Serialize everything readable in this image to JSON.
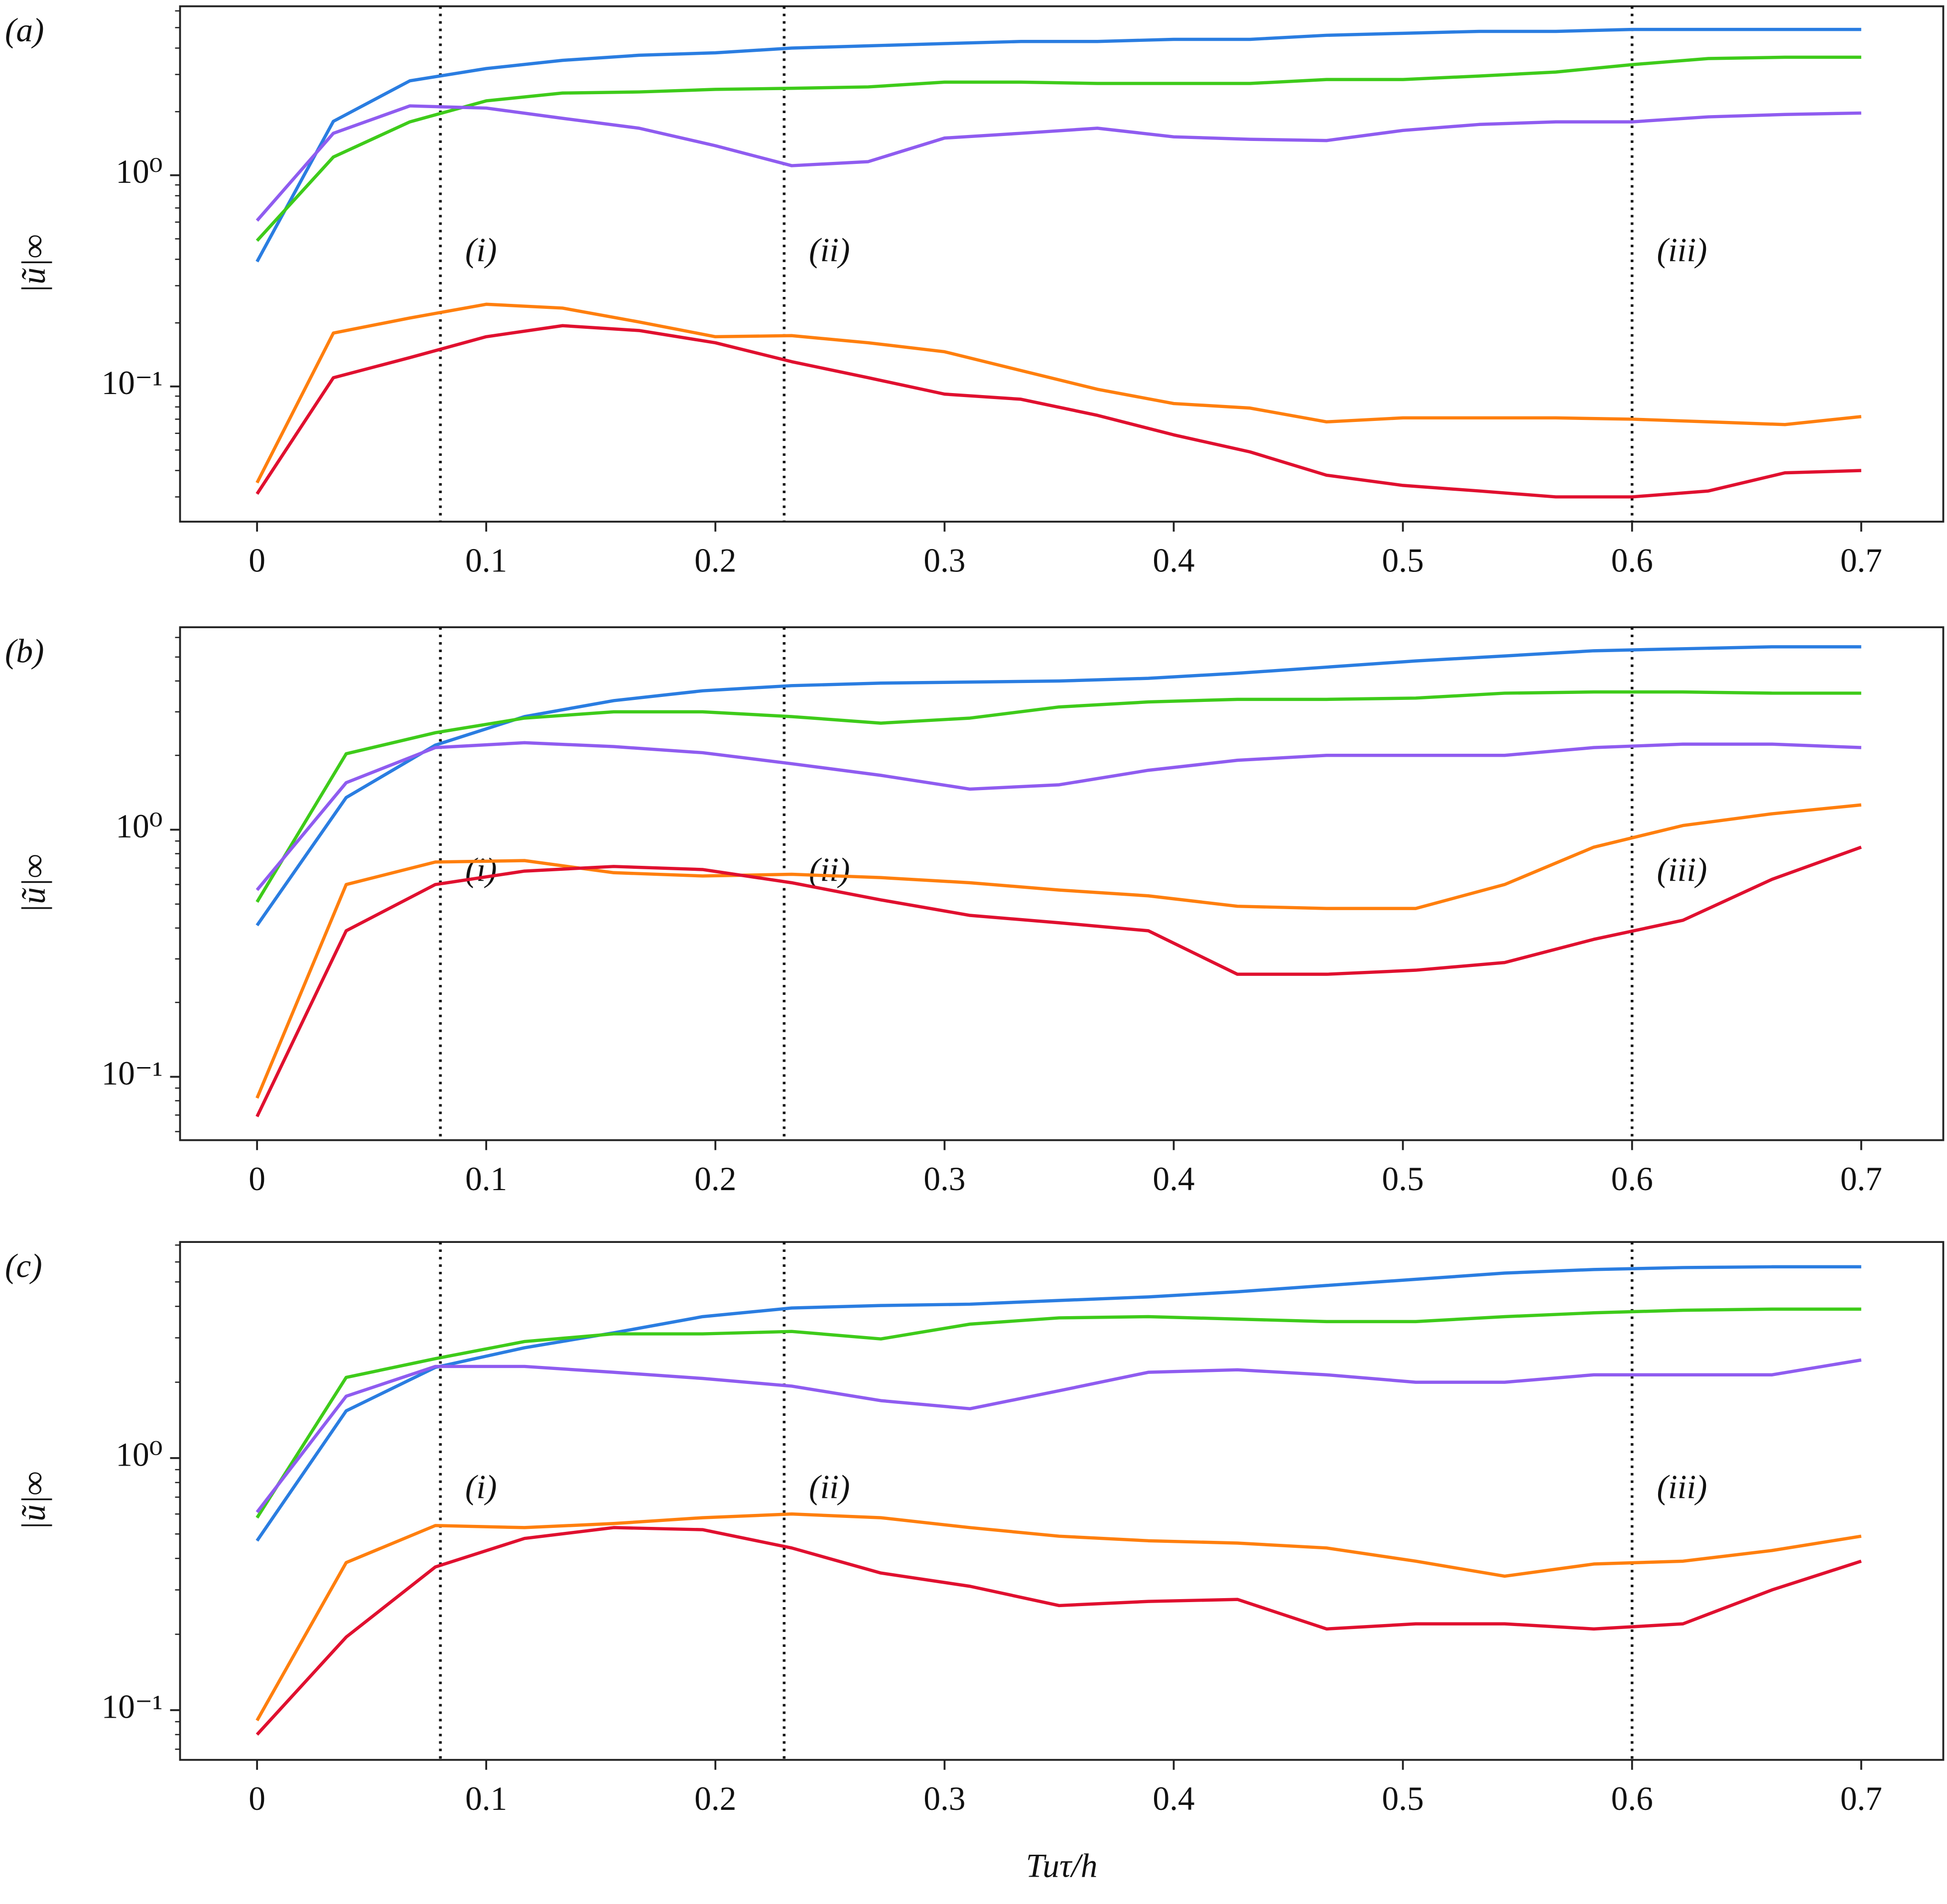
{
  "chart_data": [
    {
      "type": "line",
      "panel_label": "(a)",
      "ylabel": "|ũ|∞",
      "yscale": "log",
      "xlim": [
        -0.0336,
        0.7358
      ],
      "ylim": [
        0.0229,
        6.31
      ],
      "xticks": [
        0,
        0.1,
        0.2,
        0.3,
        0.4,
        0.5,
        0.6,
        0.7
      ],
      "yticks": [
        {
          "value": 0.1,
          "label": "10⁻¹"
        },
        {
          "value": 1,
          "label": "10⁰"
        }
      ],
      "vlines": [
        {
          "x": 0.08,
          "label": "(i)"
        },
        {
          "x": 0.23,
          "label": "(ii)"
        },
        {
          "x": 0.6,
          "label": "(iii)"
        }
      ],
      "x": [
        0,
        0.0333,
        0.0667,
        0.1,
        0.1333,
        0.1667,
        0.2,
        0.2333,
        0.2667,
        0.3,
        0.3333,
        0.3667,
        0.4,
        0.4333,
        0.4667,
        0.5,
        0.5333,
        0.5667,
        0.6,
        0.6333,
        0.6667,
        0.7
      ],
      "series": [
        {
          "color": "#2a7de1",
          "values": [
            0.39,
            1.8,
            2.8,
            3.2,
            3.5,
            3.7,
            3.8,
            4.0,
            4.1,
            4.2,
            4.3,
            4.3,
            4.4,
            4.4,
            4.6,
            4.7,
            4.8,
            4.8,
            4.9,
            4.9,
            4.9,
            4.9
          ]
        },
        {
          "color": "#3ecb1a",
          "values": [
            0.49,
            1.22,
            1.79,
            2.25,
            2.45,
            2.48,
            2.55,
            2.58,
            2.62,
            2.76,
            2.76,
            2.72,
            2.72,
            2.72,
            2.84,
            2.84,
            2.95,
            3.08,
            3.34,
            3.57,
            3.62,
            3.62
          ]
        },
        {
          "color": "#8f5cf0",
          "values": [
            0.61,
            1.58,
            2.13,
            2.08,
            1.86,
            1.67,
            1.38,
            1.11,
            1.16,
            1.5,
            1.58,
            1.67,
            1.52,
            1.48,
            1.46,
            1.63,
            1.74,
            1.79,
            1.79,
            1.89,
            1.94,
            1.97
          ]
        },
        {
          "color": "#ff7f0e",
          "values": [
            0.035,
            0.179,
            0.211,
            0.245,
            0.235,
            0.202,
            0.172,
            0.174,
            0.161,
            0.146,
            0.119,
            0.097,
            0.083,
            0.079,
            0.068,
            0.071,
            0.071,
            0.071,
            0.07,
            0.068,
            0.066,
            0.072
          ]
        },
        {
          "color": "#e0102f",
          "values": [
            0.031,
            0.11,
            0.137,
            0.172,
            0.194,
            0.184,
            0.161,
            0.131,
            0.11,
            0.092,
            0.087,
            0.073,
            0.059,
            0.049,
            0.038,
            0.034,
            0.032,
            0.03,
            0.03,
            0.032,
            0.039,
            0.04
          ]
        }
      ]
    },
    {
      "type": "line",
      "panel_label": "(b)",
      "ylabel": "|ũ|∞",
      "yscale": "log",
      "xlim": [
        -0.0336,
        0.7358
      ],
      "ylim": [
        0.0554,
        6.6
      ],
      "xticks": [
        0,
        0.1,
        0.2,
        0.3,
        0.4,
        0.5,
        0.6,
        0.7
      ],
      "yticks": [
        {
          "value": 0.1,
          "label": "10⁻¹"
        },
        {
          "value": 1,
          "label": "10⁰"
        }
      ],
      "vlines": [
        {
          "x": 0.08,
          "label": "(i)"
        },
        {
          "x": 0.23,
          "label": "(ii)"
        },
        {
          "x": 0.6,
          "label": "(iii)"
        }
      ],
      "x": [
        0,
        0.0389,
        0.0778,
        0.1167,
        0.1556,
        0.1944,
        0.2333,
        0.2722,
        0.3111,
        0.35,
        0.3889,
        0.4278,
        0.4667,
        0.5056,
        0.5444,
        0.5833,
        0.6222,
        0.6611,
        0.7
      ],
      "series": [
        {
          "color": "#2a7de1",
          "values": [
            0.41,
            1.35,
            2.2,
            2.87,
            3.33,
            3.65,
            3.83,
            3.92,
            3.96,
            4.0,
            4.1,
            4.3,
            4.55,
            4.82,
            5.05,
            5.3,
            5.4,
            5.5,
            5.5
          ]
        },
        {
          "color": "#3ecb1a",
          "values": [
            0.51,
            2.03,
            2.47,
            2.83,
            3.0,
            3.0,
            2.87,
            2.7,
            2.83,
            3.14,
            3.29,
            3.37,
            3.37,
            3.41,
            3.57,
            3.61,
            3.61,
            3.57,
            3.57
          ]
        },
        {
          "color": "#8f5cf0",
          "values": [
            0.57,
            1.55,
            2.15,
            2.25,
            2.17,
            2.05,
            1.85,
            1.66,
            1.46,
            1.52,
            1.74,
            1.91,
            2.0,
            2.0,
            2.0,
            2.15,
            2.22,
            2.22,
            2.15
          ]
        },
        {
          "color": "#ff7f0e",
          "values": [
            0.082,
            0.6,
            0.74,
            0.75,
            0.67,
            0.65,
            0.66,
            0.64,
            0.61,
            0.57,
            0.54,
            0.49,
            0.48,
            0.48,
            0.6,
            0.85,
            1.04,
            1.16,
            1.26
          ]
        },
        {
          "color": "#e0102f",
          "values": [
            0.069,
            0.39,
            0.6,
            0.68,
            0.71,
            0.69,
            0.61,
            0.52,
            0.45,
            0.42,
            0.39,
            0.26,
            0.26,
            0.27,
            0.29,
            0.36,
            0.43,
            0.63,
            0.85
          ]
        }
      ]
    },
    {
      "type": "line",
      "panel_label": "(c)",
      "ylabel": "|ũ|∞",
      "xlabel": "Tuτ/h",
      "yscale": "log",
      "xlim": [
        -0.0336,
        0.7358
      ],
      "ylim": [
        0.0635,
        7.2
      ],
      "xticks": [
        0,
        0.1,
        0.2,
        0.3,
        0.4,
        0.5,
        0.6,
        0.7
      ],
      "yticks": [
        {
          "value": 0.1,
          "label": "10⁻¹"
        },
        {
          "value": 1,
          "label": "10⁰"
        }
      ],
      "vlines": [
        {
          "x": 0.08,
          "label": "(i)"
        },
        {
          "x": 0.23,
          "label": "(ii)"
        },
        {
          "x": 0.6,
          "label": "(iii)"
        }
      ],
      "x": [
        0,
        0.0389,
        0.0778,
        0.1167,
        0.1556,
        0.1944,
        0.2333,
        0.2722,
        0.3111,
        0.35,
        0.3889,
        0.4278,
        0.4667,
        0.5056,
        0.5444,
        0.5833,
        0.6222,
        0.6611,
        0.7
      ],
      "series": [
        {
          "color": "#2a7de1",
          "values": [
            0.47,
            1.54,
            2.29,
            2.74,
            3.14,
            3.64,
            3.94,
            4.03,
            4.08,
            4.22,
            4.36,
            4.57,
            4.84,
            5.12,
            5.42,
            5.6,
            5.7,
            5.74,
            5.74
          ]
        },
        {
          "color": "#3ecb1a",
          "values": [
            0.58,
            2.09,
            2.48,
            2.9,
            3.11,
            3.11,
            3.18,
            2.97,
            3.4,
            3.6,
            3.64,
            3.56,
            3.48,
            3.48,
            3.64,
            3.77,
            3.86,
            3.9,
            3.9
          ]
        },
        {
          "color": "#8f5cf0",
          "values": [
            0.61,
            1.76,
            2.31,
            2.31,
            2.19,
            2.07,
            1.93,
            1.69,
            1.57,
            1.85,
            2.19,
            2.24,
            2.14,
            2.0,
            2.0,
            2.14,
            2.14,
            2.14,
            2.45
          ]
        },
        {
          "color": "#ff7f0e",
          "values": [
            0.091,
            0.385,
            0.54,
            0.53,
            0.55,
            0.58,
            0.6,
            0.58,
            0.53,
            0.49,
            0.47,
            0.46,
            0.44,
            0.39,
            0.34,
            0.38,
            0.39,
            0.43,
            0.49
          ]
        },
        {
          "color": "#e0102f",
          "values": [
            0.08,
            0.195,
            0.37,
            0.48,
            0.53,
            0.52,
            0.44,
            0.35,
            0.31,
            0.26,
            0.27,
            0.275,
            0.21,
            0.22,
            0.22,
            0.21,
            0.22,
            0.3,
            0.39
          ]
        }
      ]
    }
  ]
}
